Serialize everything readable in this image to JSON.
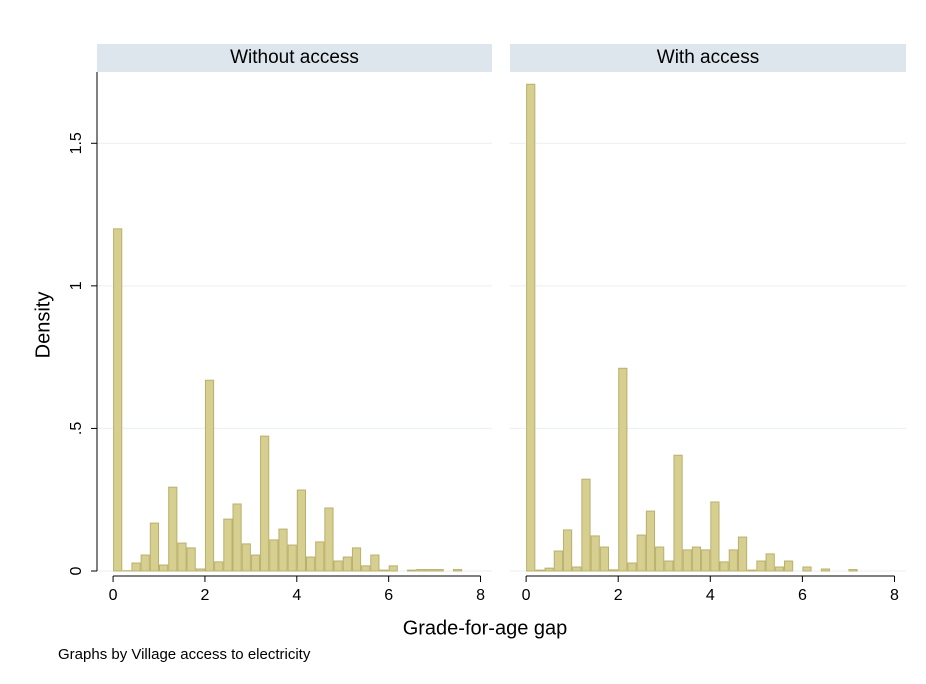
{
  "figure": {
    "ylabel": "Density",
    "xlabel": "Grade-for-age gap",
    "note": "Graphs by Village access to electricity"
  },
  "chart_data": [
    {
      "type": "histogram",
      "title": "Without access",
      "bins": [
        0,
        0.2,
        0.4,
        0.6,
        0.8,
        1,
        1.2,
        1.4,
        1.6,
        1.8,
        2,
        2.2,
        2.4,
        2.6,
        2.8,
        3,
        3.2,
        3.4,
        3.6,
        3.8,
        4,
        4.2,
        4.4,
        4.6,
        4.8,
        5,
        5.2,
        5.4,
        5.6,
        5.8,
        6,
        6.2,
        6.4,
        6.6,
        6.8,
        7,
        7.2,
        7.4,
        7.6,
        7.8,
        8
      ],
      "values": [
        1.2,
        0.001,
        0.028,
        0.056,
        0.168,
        0.021,
        0.294,
        0.098,
        0.081,
        0.007,
        0.669,
        0.032,
        0.182,
        0.235,
        0.095,
        0.056,
        0.473,
        0.109,
        0.147,
        0.091,
        0.284,
        0.049,
        0.102,
        0.221,
        0.035,
        0.049,
        0.081,
        0.018,
        0.056,
        0.003,
        0.018,
        0,
        0.003,
        0.005,
        0.005,
        0.005,
        0,
        0.005,
        0,
        0
      ],
      "color": "#d6cf90",
      "xlim": [
        -0.35,
        8.25
      ],
      "ylim": [
        0,
        1.75
      ],
      "xticks": [
        0,
        2,
        4,
        6,
        8
      ],
      "yticks": [
        0,
        {
          "value": 0.5,
          "label": ".5"
        },
        1,
        1.5
      ],
      "grid": true
    },
    {
      "type": "histogram",
      "title": "With access",
      "bins": [
        0,
        0.2,
        0.4,
        0.6,
        0.8,
        1,
        1.2,
        1.4,
        1.6,
        1.8,
        2,
        2.2,
        2.4,
        2.6,
        2.8,
        3,
        3.2,
        3.4,
        3.6,
        3.8,
        4,
        4.2,
        4.4,
        4.6,
        4.8,
        5,
        5.2,
        5.4,
        5.6,
        5.8,
        6,
        6.2,
        6.4,
        6.6,
        6.8,
        7,
        7.2,
        7.4,
        7.6,
        7.8,
        8
      ],
      "values": [
        1.707,
        0.003,
        0.01,
        0.07,
        0.144,
        0.014,
        0.322,
        0.123,
        0.084,
        0.004,
        0.711,
        0.028,
        0.126,
        0.21,
        0.084,
        0.035,
        0.406,
        0.074,
        0.084,
        0.074,
        0.242,
        0.032,
        0.074,
        0.119,
        0.003,
        0.035,
        0.06,
        0.014,
        0.035,
        0,
        0.014,
        0,
        0.007,
        0,
        0,
        0.005,
        0,
        0,
        0,
        0
      ],
      "color": "#d6cf90",
      "xlim": [
        -0.35,
        8.25
      ],
      "ylim": [
        0,
        1.75
      ],
      "xticks": [
        0,
        2,
        4,
        6,
        8
      ],
      "yticks": [
        0,
        0.5,
        1,
        1.5
      ],
      "grid": true
    }
  ]
}
